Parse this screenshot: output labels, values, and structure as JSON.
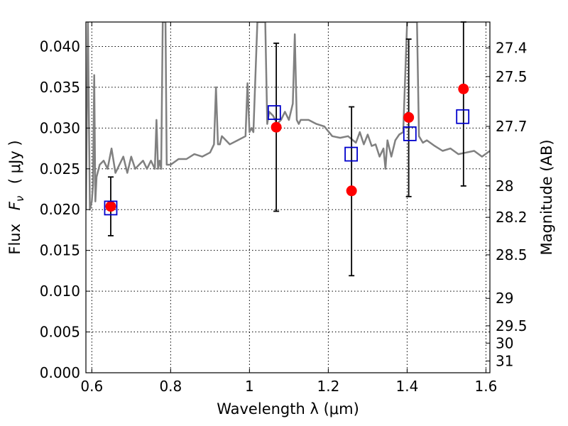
{
  "chart_data": {
    "type": "scatter",
    "title": "",
    "xlabel": "Wavelength  λ (μm)",
    "ylabel_prefix": "Flux",
    "ylabel_symbol": "F",
    "ylabel_subscript": "ν",
    "ylabel_unit": "( μJy )",
    "y2label": "Magnitude (AB)",
    "xlim": [
      0.585,
      1.61
    ],
    "ylim": [
      0.0,
      0.043
    ],
    "grid": true,
    "legend": "none",
    "x_ticks": [
      0.6,
      0.8,
      1.0,
      1.2,
      1.4,
      1.6
    ],
    "x_tick_labels": [
      "0.6",
      "0.8",
      "1",
      "1.2",
      "1.4",
      "1.6"
    ],
    "y_ticks": [
      0.0,
      0.005,
      0.01,
      0.015,
      0.02,
      0.025,
      0.03,
      0.035,
      0.04
    ],
    "y_tick_labels": [
      "0.000",
      "0.005",
      "0.010",
      "0.015",
      "0.020",
      "0.025",
      "0.030",
      "0.035",
      "0.040"
    ],
    "y2_ticks": [
      27.4,
      27.5,
      27.7,
      28,
      28.2,
      28.5,
      29,
      29.5,
      30,
      31
    ],
    "y2_tick_labels": [
      "27.4",
      "27.5",
      "27.7",
      "28",
      "28.2",
      "28.5",
      "29",
      "29.5",
      "30",
      "31"
    ],
    "colors": {
      "model": "#808080",
      "observed": "#ff0000",
      "synthetic": "#0000cc",
      "errorbar": "#000000"
    },
    "series": [
      {
        "kind": "model-spectrum",
        "x": [
          0.585,
          0.59,
          0.595,
          0.6,
          0.603,
          0.606,
          0.609,
          0.612,
          0.62,
          0.63,
          0.64,
          0.65,
          0.66,
          0.67,
          0.68,
          0.69,
          0.695,
          0.7,
          0.71,
          0.72,
          0.73,
          0.74,
          0.75,
          0.76,
          0.764,
          0.768,
          0.772,
          0.776,
          0.78,
          0.783,
          0.787,
          0.79,
          0.8,
          0.82,
          0.84,
          0.86,
          0.88,
          0.9,
          0.91,
          0.915,
          0.92,
          0.925,
          0.93,
          0.95,
          0.97,
          0.99,
          0.995,
          1.0,
          1.005,
          1.01,
          1.02,
          1.025,
          1.028,
          1.032,
          1.036,
          1.04,
          1.045,
          1.05,
          1.06,
          1.07,
          1.08,
          1.09,
          1.1,
          1.11,
          1.115,
          1.12,
          1.125,
          1.13,
          1.15,
          1.17,
          1.19,
          1.21,
          1.23,
          1.25,
          1.27,
          1.28,
          1.29,
          1.3,
          1.31,
          1.32,
          1.33,
          1.34,
          1.345,
          1.35,
          1.36,
          1.37,
          1.38,
          1.39,
          1.4,
          1.41,
          1.42,
          1.425,
          1.43,
          1.44,
          1.45,
          1.47,
          1.49,
          1.51,
          1.53,
          1.55,
          1.57,
          1.59,
          1.61
        ],
        "y": [
          0.02,
          0.043,
          0.02,
          0.021,
          0.023,
          0.0365,
          0.021,
          0.024,
          0.0255,
          0.026,
          0.025,
          0.0275,
          0.0245,
          0.0255,
          0.0265,
          0.0245,
          0.0255,
          0.0265,
          0.025,
          0.0255,
          0.026,
          0.025,
          0.026,
          0.025,
          0.031,
          0.025,
          0.026,
          0.025,
          0.043,
          0.043,
          0.043,
          0.0255,
          0.0255,
          0.0262,
          0.0262,
          0.0268,
          0.0265,
          0.027,
          0.028,
          0.035,
          0.028,
          0.028,
          0.029,
          0.028,
          0.0285,
          0.029,
          0.0355,
          0.0295,
          0.03,
          0.0295,
          0.043,
          0.043,
          0.043,
          0.043,
          0.043,
          0.043,
          0.0305,
          0.032,
          0.0315,
          0.0305,
          0.031,
          0.032,
          0.031,
          0.033,
          0.0415,
          0.031,
          0.0305,
          0.031,
          0.031,
          0.0305,
          0.0302,
          0.029,
          0.0288,
          0.029,
          0.0282,
          0.0295,
          0.028,
          0.0292,
          0.0278,
          0.028,
          0.0265,
          0.0275,
          0.025,
          0.0285,
          0.0265,
          0.0285,
          0.0292,
          0.0295,
          0.043,
          0.043,
          0.043,
          0.043,
          0.029,
          0.0282,
          0.0285,
          0.0278,
          0.0272,
          0.0275,
          0.0268,
          0.027,
          0.0272,
          0.0265,
          0.0272
        ]
      },
      {
        "kind": "observed",
        "x": [
          0.648,
          1.068,
          1.259,
          1.404,
          1.543
        ],
        "y": [
          0.0204,
          0.0301,
          0.0223,
          0.0313,
          0.0348
        ],
        "yerr_low": [
          0.0168,
          0.0198,
          0.0119,
          0.0216,
          0.0229
        ],
        "yerr_high": [
          0.024,
          0.0404,
          0.0326,
          0.0409,
          0.0431
        ]
      },
      {
        "kind": "synthetic-photometry",
        "x": [
          0.648,
          1.063,
          1.258,
          1.407,
          1.541
        ],
        "y": [
          0.0202,
          0.0319,
          0.0268,
          0.0293,
          0.0314
        ]
      }
    ]
  }
}
